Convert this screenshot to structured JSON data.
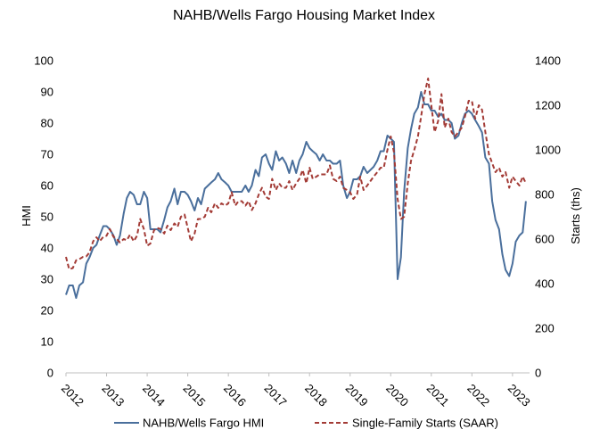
{
  "chart_data": {
    "type": "line",
    "title": "NAHB/Wells Fargo Housing Market Index",
    "ylabel": "HMI",
    "y2label": "Starts (ths)",
    "ylim": [
      0,
      100
    ],
    "y2lim": [
      0,
      1400
    ],
    "xlim": [
      2012.0,
      2023.42
    ],
    "yticks": [
      "0",
      "10",
      "20",
      "30",
      "40",
      "50",
      "60",
      "70",
      "80",
      "90",
      "100"
    ],
    "y2ticks": [
      "0",
      "200",
      "400",
      "600",
      "800",
      "1000",
      "1200",
      "1400"
    ],
    "xticks": [
      "2012",
      "2013",
      "2014",
      "2015",
      "2016",
      "2017",
      "2018",
      "2019",
      "2020",
      "2021",
      "2022",
      "2023"
    ],
    "grid": false,
    "legend_position": "bottom",
    "series": [
      {
        "name": "NAHB/Wells Fargo HMI",
        "axis": "left",
        "color": "#4a6f9c",
        "style": "solid",
        "x": [
          2012.0,
          2012.08,
          2012.17,
          2012.25,
          2012.33,
          2012.42,
          2012.5,
          2012.58,
          2012.67,
          2012.75,
          2012.83,
          2012.92,
          2013.0,
          2013.08,
          2013.17,
          2013.25,
          2013.33,
          2013.42,
          2013.5,
          2013.58,
          2013.67,
          2013.75,
          2013.83,
          2013.92,
          2014.0,
          2014.08,
          2014.17,
          2014.25,
          2014.33,
          2014.42,
          2014.5,
          2014.58,
          2014.67,
          2014.75,
          2014.83,
          2014.92,
          2015.0,
          2015.08,
          2015.17,
          2015.25,
          2015.33,
          2015.42,
          2015.5,
          2015.58,
          2015.67,
          2015.75,
          2015.83,
          2015.92,
          2016.0,
          2016.08,
          2016.17,
          2016.25,
          2016.33,
          2016.42,
          2016.5,
          2016.58,
          2016.67,
          2016.75,
          2016.83,
          2016.92,
          2017.0,
          2017.08,
          2017.17,
          2017.25,
          2017.33,
          2017.42,
          2017.5,
          2017.58,
          2017.67,
          2017.75,
          2017.83,
          2017.92,
          2018.0,
          2018.08,
          2018.17,
          2018.25,
          2018.33,
          2018.42,
          2018.5,
          2018.58,
          2018.67,
          2018.75,
          2018.83,
          2018.92,
          2019.0,
          2019.08,
          2019.17,
          2019.25,
          2019.33,
          2019.42,
          2019.5,
          2019.58,
          2019.67,
          2019.75,
          2019.83,
          2019.92,
          2020.0,
          2020.08,
          2020.17,
          2020.25,
          2020.33,
          2020.42,
          2020.5,
          2020.58,
          2020.67,
          2020.75,
          2020.83,
          2020.92,
          2021.0,
          2021.08,
          2021.17,
          2021.25,
          2021.33,
          2021.42,
          2021.5,
          2021.58,
          2021.67,
          2021.75,
          2021.83,
          2021.92,
          2022.0,
          2022.08,
          2022.17,
          2022.25,
          2022.33,
          2022.42,
          2022.5,
          2022.58,
          2022.67,
          2022.75,
          2022.83,
          2022.92,
          2023.0,
          2023.08,
          2023.17,
          2023.25,
          2023.33
        ],
        "values": [
          25,
          28,
          28,
          24,
          28,
          29,
          35,
          37,
          40,
          41,
          44,
          47,
          47,
          46,
          44,
          41,
          44,
          51,
          56,
          58,
          57,
          54,
          54,
          58,
          56,
          46,
          46,
          46,
          45,
          49,
          53,
          55,
          59,
          54,
          58,
          58,
          57,
          55,
          52,
          56,
          54,
          59,
          60,
          61,
          62,
          64,
          62,
          61,
          60,
          58,
          58,
          58,
          58,
          60,
          58,
          60,
          65,
          63,
          69,
          70,
          67,
          65,
          71,
          68,
          69,
          67,
          64,
          68,
          64,
          68,
          70,
          74,
          72,
          71,
          70,
          68,
          70,
          68,
          68,
          67,
          67,
          68,
          60,
          56,
          58,
          62,
          62,
          63,
          66,
          64,
          65,
          66,
          68,
          71,
          71,
          76,
          75,
          74,
          30,
          37,
          58,
          72,
          78,
          83,
          85,
          90,
          86,
          86,
          84,
          84,
          82,
          83,
          81,
          81,
          80,
          75,
          76,
          80,
          83,
          84,
          83,
          81,
          79,
          77,
          69,
          67,
          55,
          49,
          46,
          38,
          33,
          31,
          35,
          42,
          44,
          45,
          55
        ]
      },
      {
        "name": "Single-Family Starts (SAAR)",
        "axis": "right",
        "color": "#a33b36",
        "style": "dashed",
        "x": [
          2012.0,
          2012.08,
          2012.17,
          2012.25,
          2012.33,
          2012.42,
          2012.5,
          2012.58,
          2012.67,
          2012.75,
          2012.83,
          2012.92,
          2013.0,
          2013.08,
          2013.17,
          2013.25,
          2013.33,
          2013.42,
          2013.5,
          2013.58,
          2013.67,
          2013.75,
          2013.83,
          2013.92,
          2014.0,
          2014.08,
          2014.17,
          2014.25,
          2014.33,
          2014.42,
          2014.5,
          2014.58,
          2014.67,
          2014.75,
          2014.83,
          2014.92,
          2015.0,
          2015.08,
          2015.17,
          2015.25,
          2015.33,
          2015.42,
          2015.5,
          2015.58,
          2015.67,
          2015.75,
          2015.83,
          2015.92,
          2016.0,
          2016.08,
          2016.17,
          2016.25,
          2016.33,
          2016.42,
          2016.5,
          2016.58,
          2016.67,
          2016.75,
          2016.83,
          2016.92,
          2017.0,
          2017.08,
          2017.17,
          2017.25,
          2017.33,
          2017.42,
          2017.5,
          2017.58,
          2017.67,
          2017.75,
          2017.83,
          2017.92,
          2018.0,
          2018.08,
          2018.17,
          2018.25,
          2018.33,
          2018.42,
          2018.5,
          2018.58,
          2018.67,
          2018.75,
          2018.83,
          2018.92,
          2019.0,
          2019.08,
          2019.17,
          2019.25,
          2019.33,
          2019.42,
          2019.5,
          2019.58,
          2019.67,
          2019.75,
          2019.83,
          2019.92,
          2020.0,
          2020.08,
          2020.17,
          2020.25,
          2020.33,
          2020.42,
          2020.5,
          2020.58,
          2020.67,
          2020.75,
          2020.83,
          2020.92,
          2021.0,
          2021.08,
          2021.17,
          2021.25,
          2021.33,
          2021.42,
          2021.5,
          2021.58,
          2021.67,
          2021.75,
          2021.83,
          2021.92,
          2022.0,
          2022.08,
          2022.17,
          2022.25,
          2022.33,
          2022.42,
          2022.5,
          2022.58,
          2022.67,
          2022.75,
          2022.83,
          2022.92,
          2023.0,
          2023.08,
          2023.17,
          2023.25,
          2023.33
        ],
        "values": [
          520,
          465,
          470,
          505,
          510,
          520,
          522,
          540,
          590,
          608,
          590,
          610,
          615,
          645,
          610,
          600,
          585,
          600,
          595,
          620,
          590,
          615,
          690,
          645,
          570,
          580,
          640,
          650,
          645,
          625,
          660,
          640,
          670,
          655,
          700,
          710,
          650,
          590,
          625,
          690,
          690,
          700,
          740,
          720,
          760,
          740,
          760,
          750,
          760,
          810,
          750,
          770,
          770,
          750,
          770,
          730,
          760,
          800,
          830,
          790,
          780,
          870,
          820,
          850,
          830,
          830,
          860,
          820,
          850,
          870,
          910,
          850,
          920,
          870,
          880,
          890,
          890,
          890,
          930,
          870,
          860,
          880,
          830,
          820,
          810,
          780,
          800,
          880,
          820,
          840,
          860,
          880,
          900,
          920,
          920,
          1000,
          1060,
          990,
          780,
          690,
          700,
          850,
          950,
          1000,
          1060,
          1150,
          1250,
          1320,
          1200,
          1080,
          1130,
          1250,
          1100,
          1140,
          1080,
          1060,
          1080,
          1100,
          1150,
          1220,
          1220,
          1140,
          1200,
          1180,
          1080,
          980,
          940,
          900,
          920,
          880,
          900,
          830,
          880,
          860,
          840,
          880,
          850
        ]
      }
    ]
  }
}
